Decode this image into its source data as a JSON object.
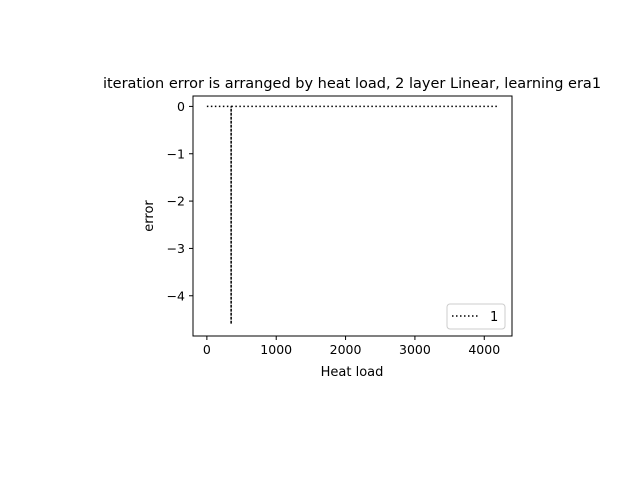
{
  "chart_data": {
    "type": "line",
    "title": "iteration error is arranged by heat load, 2 layer Linear, learning era1",
    "xlabel": "Heat load",
    "ylabel": "error",
    "xlim": [
      -200,
      4400
    ],
    "ylim": [
      -4.85,
      0.22
    ],
    "x_ticks": [
      0,
      1000,
      2000,
      3000,
      4000
    ],
    "y_ticks": [
      0,
      -1,
      -2,
      -3,
      -4
    ],
    "x_tick_labels": [
      "0",
      "1000",
      "2000",
      "3000",
      "4000"
    ],
    "y_tick_labels": [
      "0",
      "−1",
      "−2",
      "−3",
      "−4"
    ],
    "grid": false,
    "legend_position": "lower right",
    "series": [
      {
        "name": "1",
        "color": "#000000",
        "line_style": "dotted",
        "x": [
          0,
          350,
          350,
          350,
          1000,
          2000,
          3000,
          4000,
          4200
        ],
        "y": [
          0,
          0,
          -4.6,
          0,
          0,
          0,
          0,
          0,
          0
        ]
      }
    ]
  }
}
